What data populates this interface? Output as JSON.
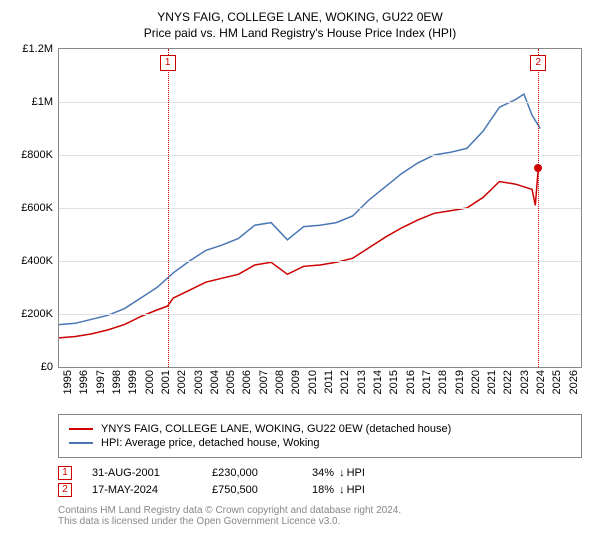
{
  "title": "YNYS FAIG, COLLEGE LANE, WOKING, GU22 0EW",
  "subtitle": "Price paid vs. HM Land Registry's House Price Index (HPI)",
  "chart": {
    "type": "line",
    "background_color": "#ffffff",
    "grid_color": "#e0e0e0",
    "border_color": "#888888",
    "x": {
      "min": 1995,
      "max": 2027,
      "ticks": [
        1995,
        1996,
        1997,
        1998,
        1999,
        2000,
        2001,
        2002,
        2003,
        2004,
        2005,
        2006,
        2007,
        2008,
        2009,
        2010,
        2011,
        2012,
        2013,
        2014,
        2015,
        2016,
        2017,
        2018,
        2019,
        2020,
        2021,
        2022,
        2023,
        2024,
        2025,
        2026
      ],
      "label_fontsize": 11,
      "label_rotation": -90
    },
    "y": {
      "min": 0,
      "max": 1200000,
      "ticks": [
        0,
        200000,
        400000,
        600000,
        800000,
        1000000,
        1200000
      ],
      "tick_labels": [
        "£0",
        "£200K",
        "£400K",
        "£600K",
        "£800K",
        "£1M",
        "£1.2M"
      ],
      "label_fontsize": 11
    },
    "vmarkers": [
      {
        "x": 2001.66,
        "label": "1"
      },
      {
        "x": 2024.38,
        "label": "2"
      }
    ],
    "marker_color": "#cc0000",
    "series": [
      {
        "name": "price_paid",
        "label": "YNYS FAIG, COLLEGE LANE, WOKING, GU22 0EW (detached house)",
        "color": "#cc0000",
        "line_width": 1.5,
        "data": [
          [
            1995,
            110000
          ],
          [
            1996,
            115000
          ],
          [
            1997,
            125000
          ],
          [
            1998,
            140000
          ],
          [
            1999,
            160000
          ],
          [
            2000,
            190000
          ],
          [
            2001,
            215000
          ],
          [
            2001.66,
            230000
          ],
          [
            2002,
            260000
          ],
          [
            2003,
            290000
          ],
          [
            2004,
            320000
          ],
          [
            2005,
            335000
          ],
          [
            2006,
            350000
          ],
          [
            2007,
            385000
          ],
          [
            2008,
            395000
          ],
          [
            2009,
            350000
          ],
          [
            2010,
            380000
          ],
          [
            2011,
            385000
          ],
          [
            2012,
            395000
          ],
          [
            2013,
            410000
          ],
          [
            2014,
            450000
          ],
          [
            2015,
            490000
          ],
          [
            2016,
            525000
          ],
          [
            2017,
            555000
          ],
          [
            2018,
            580000
          ],
          [
            2019,
            590000
          ],
          [
            2020,
            600000
          ],
          [
            2021,
            640000
          ],
          [
            2022,
            700000
          ],
          [
            2023,
            690000
          ],
          [
            2024,
            670000
          ],
          [
            2024.2,
            610000
          ],
          [
            2024.38,
            750500
          ]
        ],
        "end_point_marker": true
      },
      {
        "name": "hpi",
        "label": "HPI: Average price, detached house, Woking",
        "color": "#4a77b4",
        "line_width": 1.5,
        "data": [
          [
            1995,
            160000
          ],
          [
            1996,
            165000
          ],
          [
            1997,
            180000
          ],
          [
            1998,
            195000
          ],
          [
            1999,
            220000
          ],
          [
            2000,
            260000
          ],
          [
            2001,
            300000
          ],
          [
            2002,
            355000
          ],
          [
            2003,
            400000
          ],
          [
            2004,
            440000
          ],
          [
            2005,
            460000
          ],
          [
            2006,
            485000
          ],
          [
            2007,
            535000
          ],
          [
            2008,
            545000
          ],
          [
            2009,
            480000
          ],
          [
            2010,
            530000
          ],
          [
            2011,
            535000
          ],
          [
            2012,
            545000
          ],
          [
            2013,
            570000
          ],
          [
            2014,
            630000
          ],
          [
            2015,
            680000
          ],
          [
            2016,
            730000
          ],
          [
            2017,
            770000
          ],
          [
            2018,
            800000
          ],
          [
            2019,
            810000
          ],
          [
            2020,
            825000
          ],
          [
            2021,
            890000
          ],
          [
            2022,
            980000
          ],
          [
            2023,
            1010000
          ],
          [
            2023.5,
            1030000
          ],
          [
            2024,
            950000
          ],
          [
            2024.5,
            900000
          ]
        ]
      }
    ]
  },
  "legend": {
    "items": [
      {
        "color": "#cc0000",
        "label": "YNYS FAIG, COLLEGE LANE, WOKING, GU22 0EW (detached house)"
      },
      {
        "color": "#4a77b4",
        "label": "HPI: Average price, detached house, Woking"
      }
    ]
  },
  "sales": [
    {
      "idx": "1",
      "date": "31-AUG-2001",
      "price": "£230,000",
      "diff": "34%",
      "diff_suffix": "HPI"
    },
    {
      "idx": "2",
      "date": "17-MAY-2024",
      "price": "£750,500",
      "diff": "18%",
      "diff_suffix": "HPI"
    }
  ],
  "footer": {
    "line1": "Contains HM Land Registry data © Crown copyright and database right 2024.",
    "line2": "This data is licensed under the Open Government Licence v3.0."
  }
}
